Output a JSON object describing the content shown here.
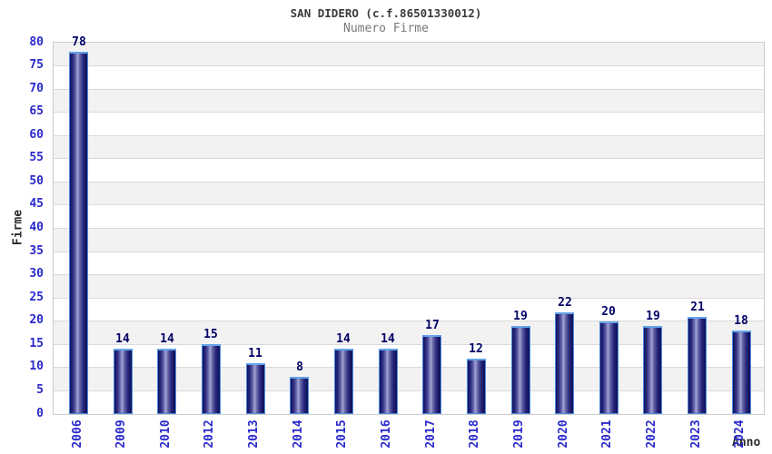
{
  "chart_data": {
    "type": "bar",
    "title": "SAN DIDERO (c.f.86501330012)",
    "subtitle": "Numero Firme",
    "xlabel": "Anno",
    "ylabel": "Firme",
    "categories": [
      "2006",
      "2009",
      "2010",
      "2012",
      "2013",
      "2014",
      "2015",
      "2016",
      "2017",
      "2018",
      "2019",
      "2020",
      "2021",
      "2022",
      "2023",
      "2024"
    ],
    "values": [
      78,
      14,
      14,
      15,
      11,
      8,
      14,
      14,
      17,
      12,
      19,
      22,
      20,
      19,
      21,
      18
    ],
    "ylim": [
      0,
      80
    ],
    "ytick_step": 5,
    "legend": "none",
    "grid": "alternating horizontal bands with gridlines every 5",
    "colors": {
      "tick_label": "#2929cc",
      "value_label": "#000066",
      "band_gray": "#f2f2f2",
      "band_white": "#ffffff",
      "gridline": "#dadada",
      "plot_border": "#cccccc",
      "bar_outline": "#4d8ce0",
      "bar_cap": "#63a4ea",
      "bar_dark": "#12125f",
      "bar_highlight": "#a4a4d4",
      "title_color": "#3a3a3a",
      "subtitle_color": "#787878",
      "axis_title_color": "#2b2b2b"
    }
  }
}
